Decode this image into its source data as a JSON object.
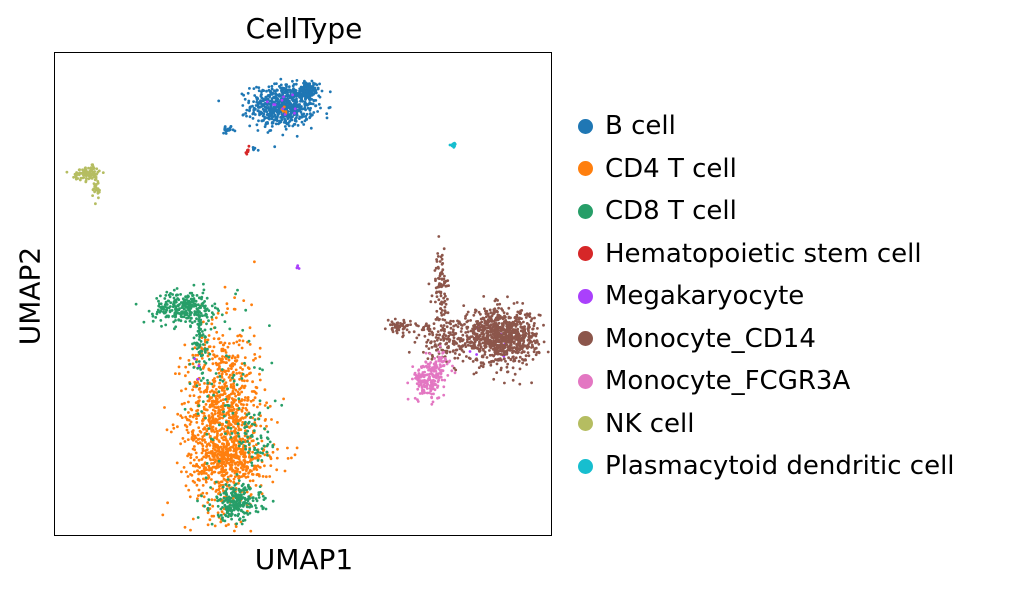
{
  "chart_data": {
    "type": "scatter",
    "title": "CellType",
    "xlabel": "UMAP1",
    "ylabel": "UMAP2",
    "xlim": [
      0,
      10
    ],
    "ylim": [
      0,
      10
    ],
    "grid": false,
    "axis_ticks": false,
    "legend_position": "right, outside plot",
    "series": [
      {
        "name": "B cell",
        "color": "#1f77b4",
        "clusters": [
          {
            "cx": 4.6,
            "cy": 8.9,
            "sx": 0.32,
            "sy": 0.22,
            "n": 650
          },
          {
            "cx": 5.1,
            "cy": 9.2,
            "sx": 0.12,
            "sy": 0.1,
            "n": 120
          },
          {
            "cx": 3.5,
            "cy": 8.4,
            "sx": 0.06,
            "sy": 0.03,
            "n": 20
          },
          {
            "cx": 4.0,
            "cy": 8.0,
            "sx": 0.02,
            "sy": 0.03,
            "n": 6
          }
        ]
      },
      {
        "name": "CD4 T cell",
        "color": "#ff7f0e",
        "clusters": [
          {
            "cx": 3.4,
            "cy": 2.4,
            "sx": 0.38,
            "sy": 0.95,
            "n": 1050
          },
          {
            "cx": 3.6,
            "cy": 1.5,
            "sx": 0.45,
            "sy": 0.25,
            "n": 250
          },
          {
            "cx": 4.6,
            "cy": 8.8,
            "sx": 0.05,
            "sy": 0.05,
            "n": 6
          }
        ]
      },
      {
        "name": "CD8 T cell",
        "color": "#279e68",
        "clusters": [
          {
            "cx": 2.6,
            "cy": 4.7,
            "sx": 0.3,
            "sy": 0.17,
            "n": 260
          },
          {
            "cx": 2.95,
            "cy": 4.0,
            "sx": 0.12,
            "sy": 0.5,
            "n": 90
          },
          {
            "cx": 3.65,
            "cy": 0.65,
            "sx": 0.25,
            "sy": 0.18,
            "n": 250
          },
          {
            "cx": 4.1,
            "cy": 2.0,
            "sx": 0.25,
            "sy": 0.3,
            "n": 60
          },
          {
            "cx": 3.5,
            "cy": 2.6,
            "sx": 0.4,
            "sy": 0.9,
            "n": 80
          }
        ]
      },
      {
        "name": "Hematopoietic stem cell",
        "color": "#d62728",
        "clusters": [
          {
            "cx": 3.88,
            "cy": 7.95,
            "sx": 0.02,
            "sy": 0.04,
            "n": 8
          }
        ]
      },
      {
        "name": "Megakaryocyte",
        "color": "#aa40fc",
        "clusters": [
          {
            "cx": 4.9,
            "cy": 5.55,
            "sx": 0.02,
            "sy": 0.02,
            "n": 4
          },
          {
            "cx": 4.6,
            "cy": 8.9,
            "sx": 0.25,
            "sy": 0.12,
            "n": 10
          },
          {
            "cx": 8.6,
            "cy": 4.0,
            "sx": 0.3,
            "sy": 0.15,
            "n": 8
          },
          {
            "cx": 2.9,
            "cy": 3.5,
            "sx": 0.05,
            "sy": 0.1,
            "n": 3
          }
        ]
      },
      {
        "name": "Monocyte_CD14",
        "color": "#8c564b",
        "clusters": [
          {
            "cx": 9.0,
            "cy": 4.1,
            "sx": 0.38,
            "sy": 0.28,
            "n": 900
          },
          {
            "cx": 7.9,
            "cy": 4.0,
            "sx": 0.28,
            "sy": 0.18,
            "n": 120
          },
          {
            "cx": 6.95,
            "cy": 4.3,
            "sx": 0.12,
            "sy": 0.07,
            "n": 60
          },
          {
            "cx": 7.8,
            "cy": 5.1,
            "sx": 0.08,
            "sy": 0.4,
            "n": 90
          },
          {
            "cx": 7.5,
            "cy": 4.3,
            "sx": 0.12,
            "sy": 0.05,
            "n": 15
          }
        ]
      },
      {
        "name": "Monocyte_FCGR3A",
        "color": "#e377c2",
        "clusters": [
          {
            "cx": 7.55,
            "cy": 3.2,
            "sx": 0.16,
            "sy": 0.2,
            "n": 170
          },
          {
            "cx": 7.8,
            "cy": 3.6,
            "sx": 0.12,
            "sy": 0.1,
            "n": 40
          }
        ]
      },
      {
        "name": "NK cell",
        "color": "#b5bd61",
        "clusters": [
          {
            "cx": 0.65,
            "cy": 7.5,
            "sx": 0.14,
            "sy": 0.07,
            "n": 90
          },
          {
            "cx": 0.85,
            "cy": 7.2,
            "sx": 0.04,
            "sy": 0.12,
            "n": 25
          }
        ]
      },
      {
        "name": "Plasmacytoid dendritic cell",
        "color": "#17becf",
        "clusters": [
          {
            "cx": 8.05,
            "cy": 8.1,
            "sx": 0.03,
            "sy": 0.03,
            "n": 14
          }
        ]
      }
    ]
  }
}
